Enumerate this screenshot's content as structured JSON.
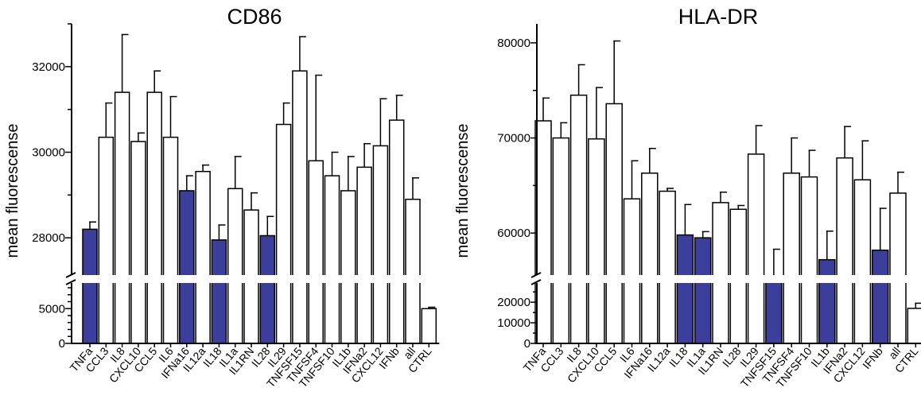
{
  "chart_data": [
    {
      "type": "bar",
      "title": "CD86",
      "xlabel": "",
      "ylabel": "mean fluorescense",
      "categories": [
        "TNFa",
        "CCL3",
        "IL8",
        "CXCL10",
        "CCL5",
        "IL6",
        "IFNa16",
        "IL12a",
        "IL18",
        "IL1a",
        "IL1RN",
        "IL28",
        "IL29",
        "TNFSF15",
        "TNFSF4",
        "TNFSF10",
        "IL1b",
        "IFNa2",
        "CXCL12",
        "IFNb",
        "all",
        "CTRL"
      ],
      "values": [
        28200,
        30350,
        31400,
        30250,
        31400,
        30350,
        29100,
        29550,
        27950,
        29150,
        28650,
        28050,
        30650,
        31900,
        29800,
        29450,
        29100,
        29650,
        30150,
        30750,
        28900,
        5000
      ],
      "errors": [
        170,
        800,
        1350,
        200,
        500,
        950,
        350,
        150,
        350,
        750,
        400,
        450,
        500,
        800,
        2000,
        550,
        800,
        550,
        1100,
        580,
        500,
        200
      ],
      "highlight_color": "#3b3f9b",
      "bar_color": "#ffffff",
      "highlighted": [
        "TNFa",
        "IFNa16",
        "IL18",
        "IL28"
      ],
      "y_ticks_upper": [
        "28000",
        "30000",
        "32000"
      ],
      "y_ticks_lower": [
        "0",
        "5000"
      ],
      "ylim_upper": [
        27000,
        33000
      ],
      "ylim_lower": [
        0,
        8000
      ]
    },
    {
      "type": "bar",
      "title": "HLA-DR",
      "xlabel": "",
      "ylabel": "mean fluorescense",
      "categories": [
        "TNFa",
        "CCL3",
        "IL8",
        "CXCL10",
        "CCL5",
        "IL6",
        "IFNa16",
        "IL12a",
        "IL18",
        "IL1a",
        "IL1RN",
        "IL28",
        "IL29",
        "TNFSF15",
        "TNFSF4",
        "TNFSF10",
        "IL1b",
        "IFNa2",
        "CXCL12",
        "IFNb",
        "all",
        "CTRL"
      ],
      "values": [
        71800,
        70000,
        74500,
        69900,
        73600,
        63600,
        66300,
        64400,
        59800,
        59500,
        63200,
        62500,
        68300,
        55300,
        66300,
        65900,
        57200,
        67900,
        65600,
        58200,
        64200,
        17000
      ],
      "errors": [
        2400,
        1600,
        3200,
        5400,
        6600,
        4000,
        2600,
        300,
        3200,
        650,
        1100,
        400,
        3000,
        3000,
        3700,
        2800,
        3000,
        3300,
        4100,
        4400,
        2200,
        2500
      ],
      "highlight_color": "#3b3f9b",
      "bar_color": "#ffffff",
      "highlighted": [
        "IL18",
        "IL1a",
        "TNFSF15",
        "IL1b",
        "IFNb"
      ],
      "y_ticks_upper": [
        "60000",
        "70000",
        "80000"
      ],
      "y_ticks_lower": [
        "0",
        "10000",
        "20000"
      ],
      "ylim_upper": [
        55000,
        82000
      ],
      "ylim_lower": [
        0,
        27000
      ]
    }
  ]
}
